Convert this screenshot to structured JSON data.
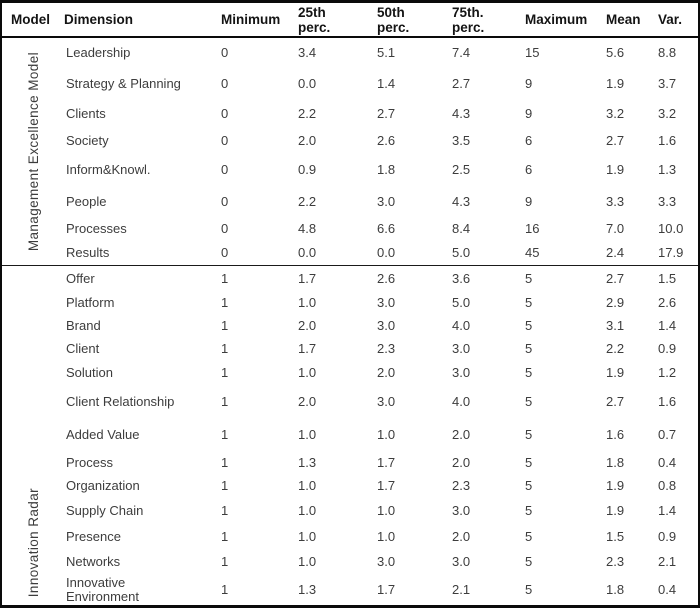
{
  "header": {
    "model": "Model",
    "dimension": "Dimension",
    "minimum": "Minimum",
    "p25_line1": "25th",
    "p25_line2": "perc.",
    "p50_line1": "50th",
    "p50_line2": "perc.",
    "p75_line1": "75th.",
    "p75_line2": "perc.",
    "maximum": "Maximum",
    "mean": "Mean",
    "var": "Var."
  },
  "chart_data": {
    "type": "table",
    "columns": [
      "Model",
      "Dimension",
      "Minimum",
      "25th perc.",
      "50th perc.",
      "75th. perc.",
      "Maximum",
      "Mean",
      "Var."
    ],
    "sections": [
      {
        "model_label": "Management Excellence Model",
        "rows": [
          [
            "Leadership",
            "0",
            "3.4",
            "5.1",
            "7.4",
            "15",
            "5.6",
            "8.8"
          ],
          [
            "Strategy & Planning",
            "0",
            "0.0",
            "1.4",
            "2.7",
            "9",
            "1.9",
            "3.7"
          ],
          [
            "Clients",
            "0",
            "2.2",
            "2.7",
            "4.3",
            "9",
            "3.2",
            "3.2"
          ],
          [
            "Society",
            "0",
            "2.0",
            "2.6",
            "3.5",
            "6",
            "2.7",
            "1.6"
          ],
          [
            "Inform&Knowl.",
            "0",
            "0.9",
            "1.8",
            "2.5",
            "6",
            "1.9",
            "1.3"
          ],
          [
            "People",
            "0",
            "2.2",
            "3.0",
            "4.3",
            "9",
            "3.3",
            "3.3"
          ],
          [
            "Processes",
            "0",
            "4.8",
            "6.6",
            "8.4",
            "16",
            "7.0",
            "10.0"
          ],
          [
            "Results",
            "0",
            "0.0",
            "0.0",
            "5.0",
            "45",
            "2.4",
            "17.9"
          ]
        ]
      },
      {
        "model_label": "Innovation Radar",
        "rows": [
          [
            "Offer",
            "1",
            "1.7",
            "2.6",
            "3.6",
            "5",
            "2.7",
            "1.5"
          ],
          [
            "Platform",
            "1",
            "1.0",
            "3.0",
            "5.0",
            "5",
            "2.9",
            "2.6"
          ],
          [
            "Brand",
            "1",
            "2.0",
            "3.0",
            "4.0",
            "5",
            "3.1",
            "1.4"
          ],
          [
            "Client",
            "1",
            "1.7",
            "2.3",
            "3.0",
            "5",
            "2.2",
            "0.9"
          ],
          [
            "Solution",
            "1",
            "1.0",
            "2.0",
            "3.0",
            "5",
            "1.9",
            "1.2"
          ],
          [
            "Client Relationship",
            "1",
            "2.0",
            "3.0",
            "4.0",
            "5",
            "2.7",
            "1.6"
          ],
          [
            "Added Value",
            "1",
            "1.0",
            "1.0",
            "2.0",
            "5",
            "1.6",
            "0.7"
          ],
          [
            "Process",
            "1",
            "1.3",
            "1.7",
            "2.0",
            "5",
            "1.8",
            "0.4"
          ],
          [
            "Organization",
            "1",
            "1.0",
            "1.7",
            "2.3",
            "5",
            "1.9",
            "0.8"
          ],
          [
            "Supply Chain",
            "1",
            "1.0",
            "1.0",
            "3.0",
            "5",
            "1.9",
            "1.4"
          ],
          [
            "Presence",
            "1",
            "1.0",
            "1.0",
            "2.0",
            "5",
            "1.5",
            "0.9"
          ],
          [
            "Networks",
            "1",
            "1.0",
            "3.0",
            "3.0",
            "5",
            "2.3",
            "2.1"
          ],
          [
            "Innovative Environment",
            "1",
            "1.3",
            "1.7",
            "2.1",
            "5",
            "1.8",
            "0.4"
          ]
        ]
      }
    ],
    "text_color": "#3d3d3d",
    "border_color": "#0a0a0a"
  }
}
